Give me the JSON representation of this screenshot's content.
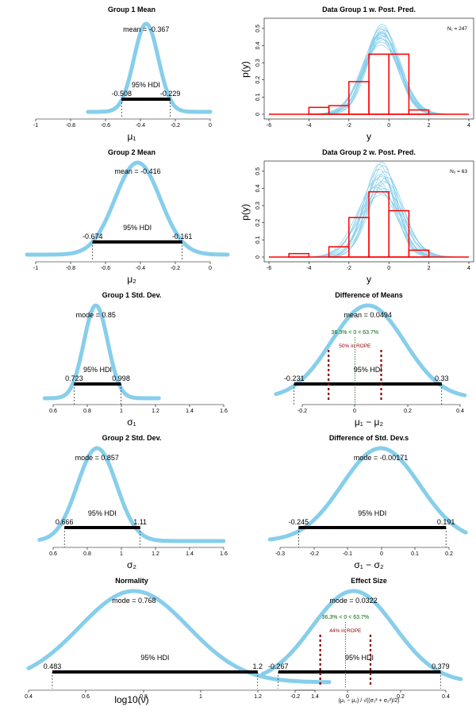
{
  "figure": {
    "background": "#ffffff",
    "density_color": "#87ceeb",
    "hist_color": "#ff0000",
    "hdi_color": "#000000",
    "rope_color": "#8b0000",
    "compare_color": "#006400"
  },
  "chart_data": [
    {
      "id": "g1-mean",
      "type": "area",
      "title": "Group 1 Mean",
      "xlabel": "μ₁",
      "xlim": [
        -1.0,
        0.0
      ],
      "plot_range": [
        -0.7,
        0.0
      ],
      "xticks": [
        -1.0,
        -0.8,
        -0.6,
        -0.4,
        -0.2,
        0.0
      ],
      "xtick_labels": [
        "-1.0",
        "-0.8",
        "-0.6",
        "-0.4",
        "-0.2",
        "0.0"
      ],
      "center": -0.367,
      "spread": 0.07,
      "stat_label": "mean = -0.367",
      "hdi": {
        "low": -0.508,
        "high": -0.229,
        "label": "95% HDI",
        "low_label": "-0.508",
        "high_label": "-0.229"
      }
    },
    {
      "id": "g1-pp",
      "type": "line",
      "title": "Data Group 1 w. Post. Pred.",
      "xlabel": "y",
      "ylabel": "p(y)",
      "xlim": [
        -6.0,
        4.0
      ],
      "ylim": [
        0.0,
        0.55
      ],
      "xticks": [
        -6,
        -4,
        -2,
        0,
        2,
        4
      ],
      "xtick_labels": [
        "-6",
        "-4",
        "-2",
        "0",
        "2",
        "4"
      ],
      "yticks": [
        0.0,
        0.1,
        0.2,
        0.3,
        0.4,
        0.5
      ],
      "ytick_labels": [
        "0.0",
        "0.1",
        "0.2",
        "0.3",
        "0.4",
        "0.5"
      ],
      "n_label": "N₁ = 247",
      "curve_x_range": [
        -6.0,
        4.0
      ],
      "curves": [
        {
          "mu": -0.35,
          "sigma": 0.85,
          "peak": 0.469
        },
        {
          "mu": -0.3,
          "sigma": 0.8,
          "peak": 0.498
        },
        {
          "mu": -0.4,
          "sigma": 0.9,
          "peak": 0.443
        },
        {
          "mu": -0.37,
          "sigma": 0.83,
          "peak": 0.481
        },
        {
          "mu": -0.25,
          "sigma": 0.88,
          "peak": 0.453
        },
        {
          "mu": -0.45,
          "sigma": 0.86,
          "peak": 0.464
        },
        {
          "mu": -0.33,
          "sigma": 0.78,
          "peak": 0.511
        },
        {
          "mu": -0.38,
          "sigma": 0.95,
          "peak": 0.42
        },
        {
          "mu": -0.42,
          "sigma": 0.8,
          "peak": 0.498
        },
        {
          "mu": -0.28,
          "sigma": 0.92,
          "peak": 0.434
        },
        {
          "mu": -0.36,
          "sigma": 0.84,
          "peak": 0.475
        },
        {
          "mu": -0.31,
          "sigma": 0.87,
          "peak": 0.459
        },
        {
          "mu": -0.48,
          "sigma": 0.89,
          "peak": 0.448
        },
        {
          "mu": -0.22,
          "sigma": 0.82,
          "peak": 0.487
        },
        {
          "mu": -0.39,
          "sigma": 0.99,
          "peak": 0.403
        },
        {
          "mu": -0.34,
          "sigma": 0.76,
          "peak": 0.525
        }
      ],
      "bars": [
        {
          "x0": -4.0,
          "x1": -3.0,
          "height": 0.04
        },
        {
          "x0": -3.0,
          "x1": -2.0,
          "height": 0.05
        },
        {
          "x0": -2.0,
          "x1": -1.0,
          "height": 0.19
        },
        {
          "x0": -1.0,
          "x1": 0.0,
          "height": 0.35
        },
        {
          "x0": 0.0,
          "x1": 1.0,
          "height": 0.35
        },
        {
          "x0": 1.0,
          "x1": 2.0,
          "height": 0.025
        }
      ]
    },
    {
      "id": "g2-mean",
      "type": "area",
      "title": "Group 2 Mean",
      "xlabel": "μ₂",
      "xlim": [
        -1.0,
        0.0
      ],
      "plot_range": [
        -1.05,
        0.1
      ],
      "xticks": [
        -1.0,
        -0.8,
        -0.6,
        -0.4,
        -0.2,
        0.0
      ],
      "xtick_labels": [
        "-1.0",
        "-0.8",
        "-0.6",
        "-0.4",
        "-0.2",
        "0.0"
      ],
      "center": -0.416,
      "spread": 0.13,
      "stat_label": "mean = -0.416",
      "hdi": {
        "low": -0.674,
        "high": -0.161,
        "label": "95% HDI",
        "low_label": "-0.674",
        "high_label": "-0.161"
      }
    },
    {
      "id": "g2-pp",
      "type": "line",
      "title": "Data Group 2 w. Post. Pred.",
      "xlabel": "y",
      "ylabel": "p(y)",
      "xlim": [
        -6.0,
        4.0
      ],
      "ylim": [
        0.0,
        0.55
      ],
      "xticks": [
        -6,
        -4,
        -2,
        0,
        2,
        4
      ],
      "xtick_labels": [
        "-6",
        "-4",
        "-2",
        "0",
        "2",
        "4"
      ],
      "yticks": [
        0.0,
        0.1,
        0.2,
        0.3,
        0.4,
        0.5
      ],
      "ytick_labels": [
        "0.0",
        "0.1",
        "0.2",
        "0.3",
        "0.4",
        "0.5"
      ],
      "n_label": "N₂ = 63",
      "curve_x_range": [
        -6.0,
        4.0
      ],
      "curves": [
        {
          "mu": -0.4,
          "sigma": 0.85,
          "peak": 0.469
        },
        {
          "mu": -0.3,
          "sigma": 0.75,
          "peak": 0.532
        },
        {
          "mu": -0.55,
          "sigma": 0.95,
          "peak": 0.42
        },
        {
          "mu": -0.2,
          "sigma": 0.8,
          "peak": 0.498
        },
        {
          "mu": -0.45,
          "sigma": 1.05,
          "peak": 0.38
        },
        {
          "mu": -0.35,
          "sigma": 0.72,
          "peak": 0.554
        },
        {
          "mu": -0.6,
          "sigma": 0.88,
          "peak": 0.453
        },
        {
          "mu": -0.15,
          "sigma": 0.92,
          "peak": 0.434
        },
        {
          "mu": -0.5,
          "sigma": 0.78,
          "peak": 0.511
        },
        {
          "mu": -0.25,
          "sigma": 1.0,
          "peak": 0.399
        },
        {
          "mu": -0.42,
          "sigma": 0.83,
          "peak": 0.481
        },
        {
          "mu": -0.65,
          "sigma": 0.98,
          "peak": 0.407
        },
        {
          "mu": -0.1,
          "sigma": 0.86,
          "peak": 0.464
        },
        {
          "mu": -0.38,
          "sigma": 1.1,
          "peak": 0.363
        },
        {
          "mu": -0.48,
          "sigma": 0.74,
          "peak": 0.539
        },
        {
          "mu": -0.28,
          "sigma": 0.9,
          "peak": 0.443
        }
      ],
      "bars": [
        {
          "x0": -5.0,
          "x1": -4.0,
          "height": 0.02
        },
        {
          "x0": -3.0,
          "x1": -2.0,
          "height": 0.06
        },
        {
          "x0": -2.0,
          "x1": -1.0,
          "height": 0.23
        },
        {
          "x0": -1.0,
          "x1": 0.0,
          "height": 0.38
        },
        {
          "x0": 0.0,
          "x1": 1.0,
          "height": 0.27
        },
        {
          "x0": 1.0,
          "x1": 2.0,
          "height": 0.04
        }
      ]
    },
    {
      "id": "g1-sd",
      "type": "area",
      "title": "Group 1 Std. Dev.",
      "xlabel": "σ₁",
      "xlim": [
        0.6,
        1.6
      ],
      "plot_range": [
        0.55,
        1.22
      ],
      "xticks": [
        0.6,
        0.8,
        1.0,
        1.2,
        1.4,
        1.6
      ],
      "xtick_labels": [
        "0.6",
        "0.8",
        "1.0",
        "1.2",
        "1.4",
        "1.6"
      ],
      "center": 0.85,
      "spread": 0.07,
      "stat_label": "mode = 0.85",
      "hdi": {
        "low": 0.723,
        "high": 0.998,
        "label": "95% HDI",
        "low_label": "0.723",
        "high_label": "0.998"
      }
    },
    {
      "id": "diff-means",
      "type": "area",
      "title": "Difference of Means",
      "xlabel": "μ₁ − μ₂",
      "xlim": [
        -0.2,
        0.4
      ],
      "plot_range": [
        -0.3,
        0.42
      ],
      "xticks": [
        -0.2,
        0.0,
        0.2,
        0.4
      ],
      "xtick_labels": [
        "-0.2",
        "0.0",
        "0.2",
        "0.4"
      ],
      "center": 0.0494,
      "spread": 0.14,
      "stat_label": "mean = 0.0494",
      "compare_label": "36.3% < 0 < 63.7%",
      "compare_value": 0.0,
      "rope_label": "50% in ROPE",
      "rope": [
        -0.1,
        0.1
      ],
      "hdi": {
        "low": -0.231,
        "high": 0.33,
        "label": "95% HDI",
        "low_label": "-0.231",
        "high_label": "0.33"
      }
    },
    {
      "id": "g2-sd",
      "type": "area",
      "title": "Group 2 Std. Dev.",
      "xlabel": "σ₂",
      "xlim": [
        0.6,
        1.6
      ],
      "plot_range": [
        0.52,
        1.6
      ],
      "xticks": [
        0.6,
        0.8,
        1.0,
        1.2,
        1.4,
        1.6
      ],
      "xtick_labels": [
        "0.6",
        "0.8",
        "1.0",
        "1.2",
        "1.4",
        "1.6"
      ],
      "center": 0.857,
      "spread": 0.115,
      "stat_label": "mode = 0.857",
      "hdi": {
        "low": 0.666,
        "high": 1.11,
        "label": "95% HDI",
        "low_label": "0.666",
        "high_label": "1.11"
      }
    },
    {
      "id": "diff-sd",
      "type": "area",
      "title": "Difference of Std. Dev.s",
      "xlabel": "σ₁ − σ₂",
      "xlim": [
        -0.3,
        0.2
      ],
      "plot_range": [
        -0.33,
        0.25
      ],
      "xticks": [
        -0.3,
        -0.2,
        -0.1,
        0.0,
        0.1,
        0.2
      ],
      "xtick_labels": [
        "-0.3",
        "-0.2",
        "-0.1",
        "0.0",
        "0.1",
        "0.2"
      ],
      "center": -0.00171,
      "spread": 0.115,
      "stat_label": "mode = -0.00171",
      "hdi": {
        "low": -0.245,
        "high": 0.191,
        "label": "95% HDI",
        "low_label": "-0.245",
        "high_label": "0.191"
      }
    },
    {
      "id": "normality",
      "type": "area",
      "title": "Normality",
      "xlabel": "log10(ν)",
      "xlim": [
        0.4,
        1.4
      ],
      "plot_range": [
        0.4,
        1.45
      ],
      "xticks": [
        0.4,
        0.6,
        0.8,
        1.0,
        1.2,
        1.4
      ],
      "xtick_labels": [
        "0.4",
        "0.6",
        "0.8",
        "1.0",
        "1.2",
        "1.4"
      ],
      "center": 0.768,
      "spread": 0.19,
      "stat_label": "mode = 0.768",
      "hdi": {
        "low": 0.483,
        "high": 1.2,
        "label": "95% HDI",
        "low_label": "0.483",
        "high_label": "1.2"
      }
    },
    {
      "id": "effect-size",
      "type": "area",
      "title": "Effect Size",
      "xlabel": "(μ₁ − μ₂) / √((σ₁² + σ₂²)/2)",
      "xlim": [
        -0.2,
        0.4
      ],
      "plot_range": [
        -0.33,
        0.46
      ],
      "xticks": [
        -0.2,
        0.0,
        0.2,
        0.4
      ],
      "xtick_labels": [
        "-0.2",
        "0.0",
        "0.2",
        "0.4"
      ],
      "center": 0.0322,
      "spread": 0.165,
      "stat_label": "mode = 0.0322",
      "compare_label": "36.3% < 0 < 63.7%",
      "compare_value": 0.0,
      "rope_label": "44% in ROPE",
      "rope": [
        -0.1,
        0.1
      ],
      "hdi": {
        "low": -0.267,
        "high": 0.379,
        "label": "95% HDI",
        "low_label": "-0.267",
        "high_label": "0.379"
      }
    }
  ]
}
